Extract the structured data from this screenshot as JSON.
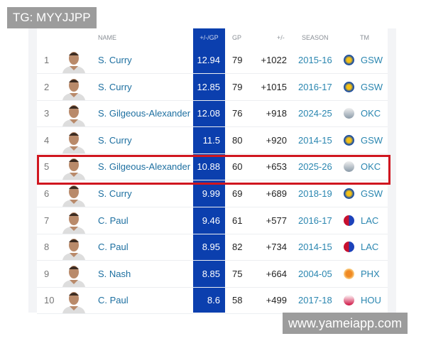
{
  "watermarks": {
    "top_left": "TG: MYYJJPP",
    "bottom_right": "www.yameiapp.com"
  },
  "headers": {
    "name": "NAME",
    "pgp": "+/-/GP",
    "gp": "GP",
    "pm": "+/-",
    "season": "SEASON",
    "tm": "TM"
  },
  "colors": {
    "highlight_column": "#0b3fae",
    "highlight_box": "#d0161f"
  },
  "highlighted_rank": 5,
  "rows": [
    {
      "rank": "1",
      "name": "S. Curry",
      "pgp": "12.94",
      "gp": "79",
      "pm": "+1022",
      "season": "2015-16",
      "tm": "GSW",
      "logo": "gsw-logo-icon"
    },
    {
      "rank": "2",
      "name": "S. Curry",
      "pgp": "12.85",
      "gp": "79",
      "pm": "+1015",
      "season": "2016-17",
      "tm": "GSW",
      "logo": "gsw-logo-icon"
    },
    {
      "rank": "3",
      "name": "S. Gilgeous-Alexander",
      "pgp": "12.08",
      "gp": "76",
      "pm": "+918",
      "season": "2024-25",
      "tm": "OKC",
      "logo": "okc-logo-icon"
    },
    {
      "rank": "4",
      "name": "S. Curry",
      "pgp": "11.5",
      "gp": "80",
      "pm": "+920",
      "season": "2014-15",
      "tm": "GSW",
      "logo": "gsw-logo-icon"
    },
    {
      "rank": "5",
      "name": "S. Gilgeous-Alexander",
      "pgp": "10.88",
      "gp": "60",
      "pm": "+653",
      "season": "2025-26",
      "tm": "OKC",
      "logo": "okc-logo-icon"
    },
    {
      "rank": "6",
      "name": "S. Curry",
      "pgp": "9.99",
      "gp": "69",
      "pm": "+689",
      "season": "2018-19",
      "tm": "GSW",
      "logo": "gsw-logo-icon"
    },
    {
      "rank": "7",
      "name": "C. Paul",
      "pgp": "9.46",
      "gp": "61",
      "pm": "+577",
      "season": "2016-17",
      "tm": "LAC",
      "logo": "lac-logo-icon"
    },
    {
      "rank": "8",
      "name": "C. Paul",
      "pgp": "8.95",
      "gp": "82",
      "pm": "+734",
      "season": "2014-15",
      "tm": "LAC",
      "logo": "lac-logo-icon"
    },
    {
      "rank": "9",
      "name": "S. Nash",
      "pgp": "8.85",
      "gp": "75",
      "pm": "+664",
      "season": "2004-05",
      "tm": "PHX",
      "logo": "phx-logo-icon"
    },
    {
      "rank": "10",
      "name": "C. Paul",
      "pgp": "8.6",
      "gp": "58",
      "pm": "+499",
      "season": "2017-18",
      "tm": "HOU",
      "logo": "hou-logo-icon"
    }
  ]
}
